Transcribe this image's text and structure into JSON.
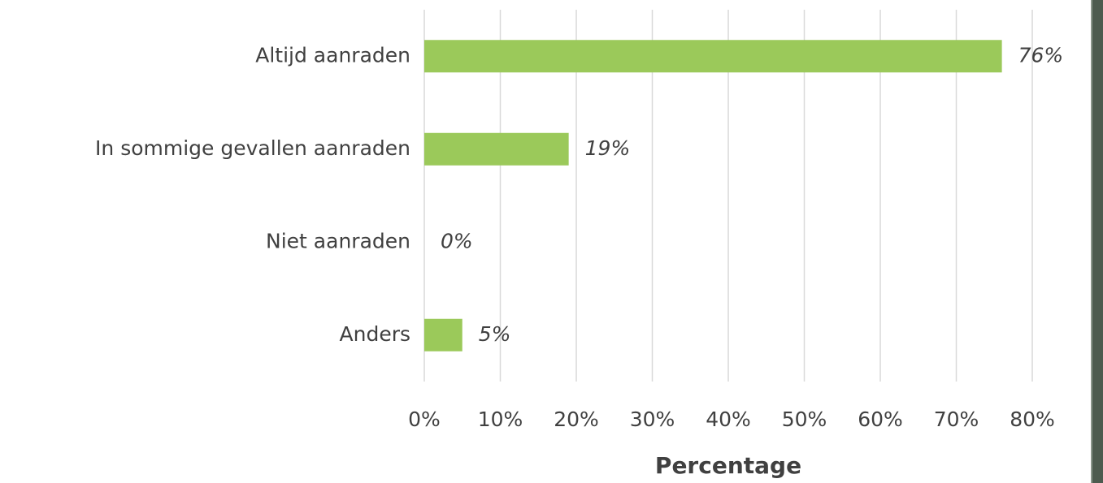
{
  "chart_data": {
    "type": "bar",
    "orientation": "horizontal",
    "categories": [
      "Altijd aanraden",
      "In sommige gevallen aanraden",
      "Niet aanraden",
      "Anders"
    ],
    "values": [
      76,
      19,
      0,
      5
    ],
    "value_labels": [
      "76%",
      "19%",
      "0%",
      "5%"
    ],
    "color": "#9bc95a",
    "xlabel": "Percentage",
    "xlim": [
      0,
      80
    ],
    "xticks": [
      {
        "value": 0,
        "label": "0%"
      },
      {
        "value": 10,
        "label": "10%"
      },
      {
        "value": 20,
        "label": "20%"
      },
      {
        "value": 30,
        "label": "30%"
      },
      {
        "value": 40,
        "label": "40%"
      },
      {
        "value": 50,
        "label": "50%"
      },
      {
        "value": 60,
        "label": "60%"
      },
      {
        "value": 70,
        "label": "70%"
      },
      {
        "value": 80,
        "label": "80%"
      }
    ],
    "grid": true
  }
}
